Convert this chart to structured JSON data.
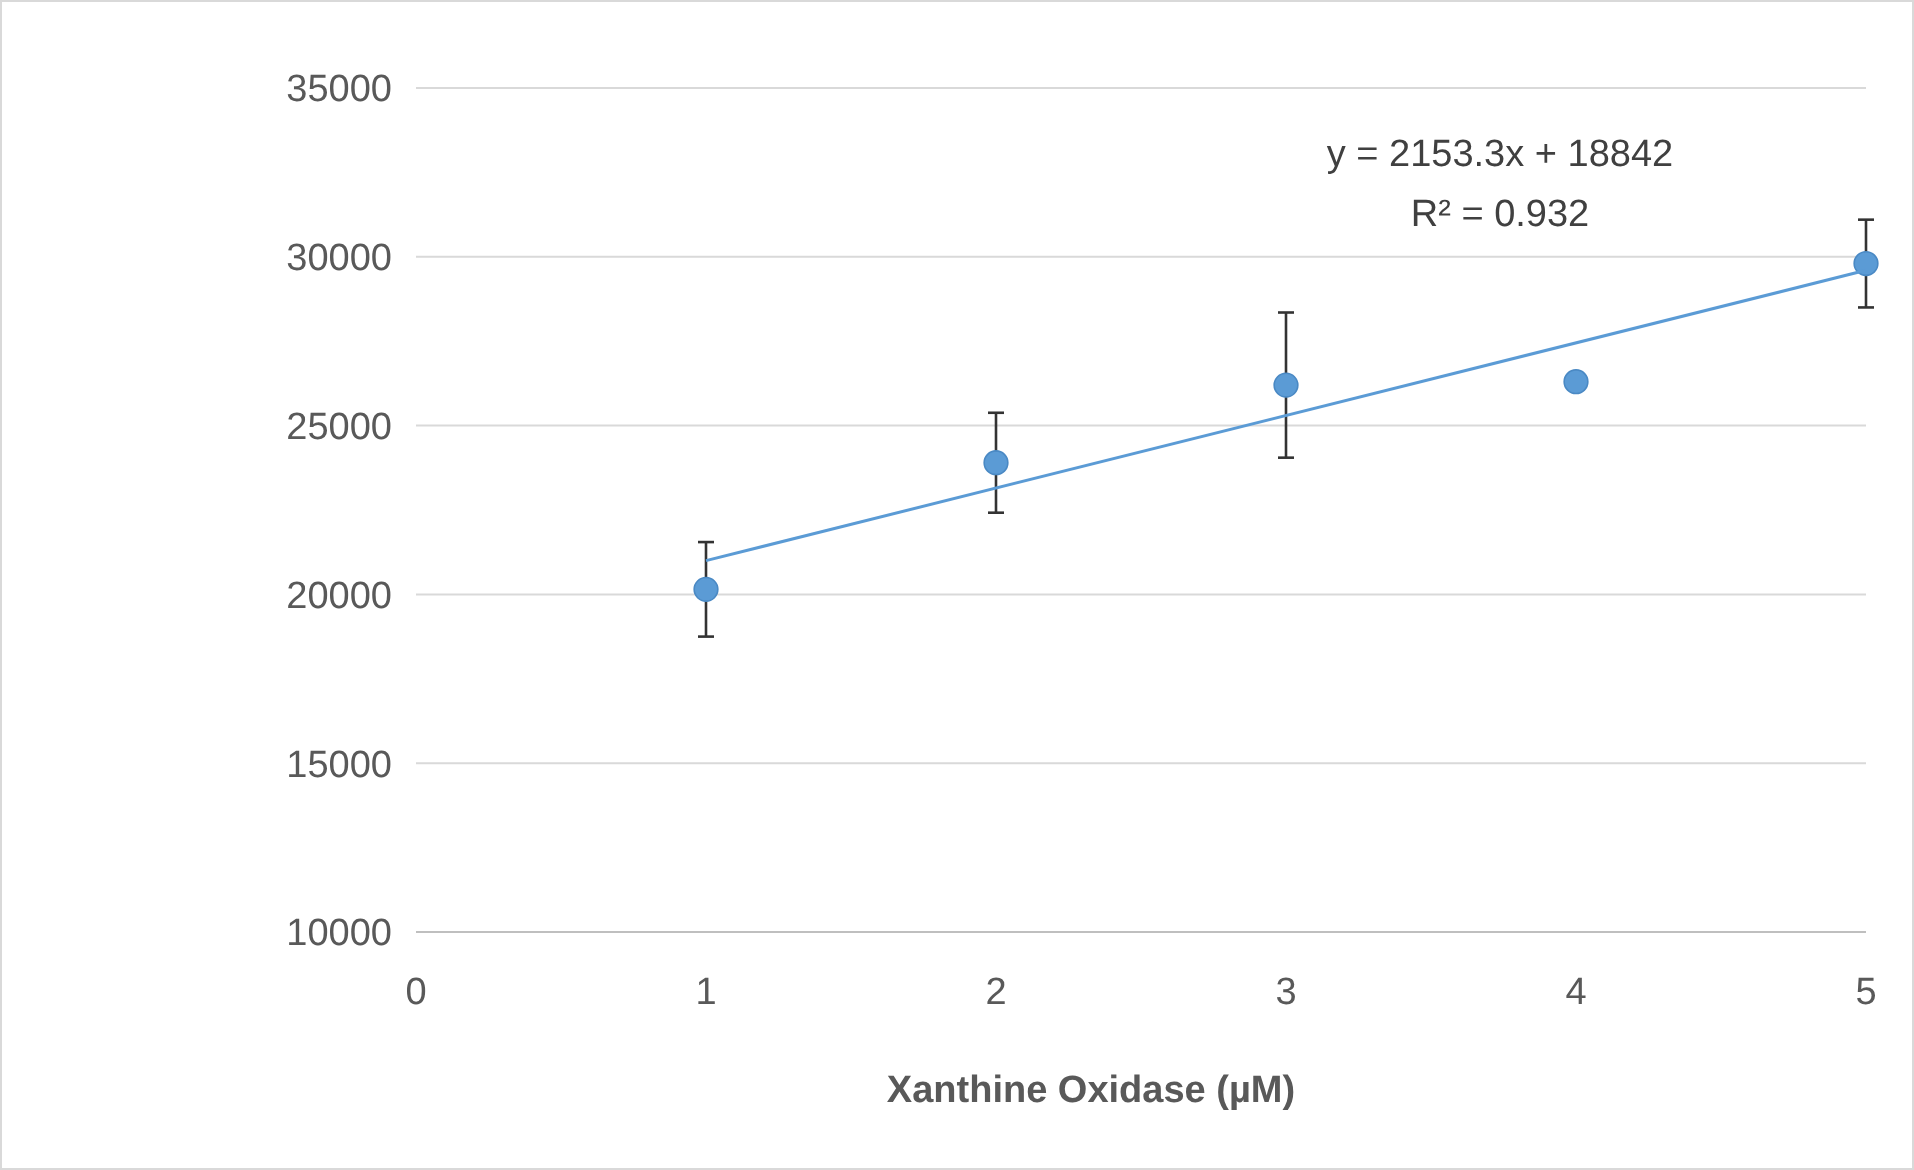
{
  "chart_data": {
    "type": "scatter",
    "xlabel": "Xanthine Oxidase (µM)",
    "xlim": [
      0,
      5
    ],
    "xticks": [
      0,
      1,
      2,
      3,
      4,
      5
    ],
    "ylim": [
      10000,
      35000
    ],
    "yticks": [
      10000,
      15000,
      20000,
      25000,
      30000,
      35000
    ],
    "grid": "y",
    "series": [
      {
        "color": "#5b9bd5",
        "marker": "circle",
        "x": [
          1,
          2,
          3,
          4,
          5
        ],
        "values": [
          20150,
          23900,
          26200,
          26300,
          29800
        ],
        "errors": [
          1400,
          1480,
          2150,
          null,
          1300
        ]
      },
      {
        "type": "line",
        "marker": "none",
        "color": "#5b9bd5",
        "x": [
          1,
          5
        ],
        "values": [
          21000,
          29600
        ]
      }
    ],
    "annotations": [
      "y = 2153.3x + 18842",
      "R² = 0.932"
    ]
  }
}
